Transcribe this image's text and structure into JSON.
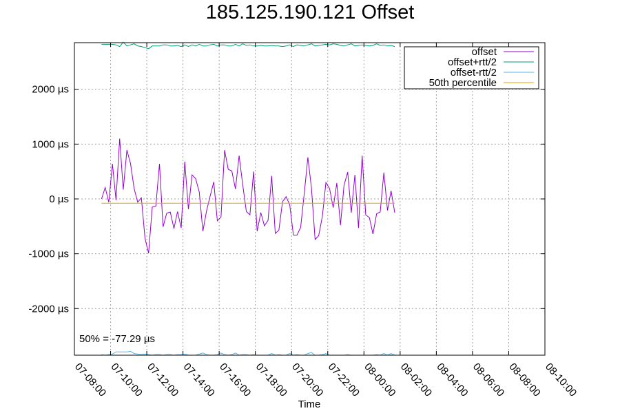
{
  "chart_data": {
    "type": "line",
    "title": "185.125.190.121 Offset",
    "xlabel": "Time",
    "ylabel": "",
    "grid": true,
    "legend_position": "top-right",
    "annotation": "50% = -77.29 µs",
    "x_ticks": [
      "07-08:00",
      "07-10:00",
      "07-12:00",
      "07-14:00",
      "07-16:00",
      "07-18:00",
      "07-20:00",
      "07-22:00",
      "08-00:00",
      "08-02:00",
      "08-04:00",
      "08-06:00",
      "08-08:00",
      "08-10:00"
    ],
    "y_ticks": [
      "-2000 µs",
      "-1000 µs",
      "0 µs",
      "1000 µs",
      "2000 µs"
    ],
    "y_tick_values": [
      -2000,
      -1000,
      0,
      1000,
      2000
    ],
    "xlim_hours": [
      0,
      26
    ],
    "ylim": [
      -2850,
      2850
    ],
    "x_start_hour": 1.5,
    "x_step_hours": 0.2,
    "series": [
      {
        "name": "offset",
        "color": "#9400d3",
        "values": [
          0,
          210,
          -60,
          640,
          -20,
          1100,
          170,
          890,
          650,
          190,
          -60,
          20,
          -720,
          -990,
          -150,
          -130,
          640,
          -510,
          -260,
          -240,
          -540,
          -230,
          -530,
          680,
          -190,
          440,
          370,
          120,
          -590,
          -220,
          50,
          310,
          -400,
          -330,
          890,
          540,
          510,
          180,
          790,
          260,
          -230,
          -290,
          500,
          -590,
          -250,
          -490,
          -390,
          420,
          -630,
          -570,
          -50,
          40,
          -110,
          -660,
          -660,
          -520,
          90,
          760,
          200,
          -740,
          -670,
          -320,
          300,
          190,
          -160,
          290,
          -480,
          250,
          490,
          -250,
          440,
          -530,
          790,
          -290,
          -340,
          -640,
          -270,
          -240,
          480,
          -210,
          150,
          -250
        ]
      },
      {
        "name": "offset+rtt/2",
        "color": "#009e73",
        "values": [
          2820,
          2820,
          2820,
          2820,
          2810,
          2780,
          2860,
          2790,
          2810,
          2830,
          2790,
          2780,
          2760,
          2740,
          2790,
          2790,
          2790,
          2810,
          2810,
          2790,
          2790,
          2800,
          2780,
          2810,
          2780,
          2810,
          2790,
          2820,
          2790,
          2790,
          2810,
          2820,
          2790,
          2810,
          2810,
          2790,
          2790,
          2820,
          2790,
          2830,
          2800,
          2810,
          2790,
          2790,
          2800,
          2790,
          2790,
          2800,
          2790,
          2790,
          2780,
          2790,
          2810,
          2780,
          2810,
          2800,
          2790,
          2810,
          2830,
          2790,
          2800,
          2810,
          2820,
          2810,
          2830,
          2820,
          2800,
          2790,
          2810,
          2830,
          2790,
          2800,
          2810,
          2800,
          2790,
          2800,
          2830,
          2800,
          2810,
          2790,
          2800,
          2780
        ]
      },
      {
        "name": "offset-rtt/2",
        "color": "#56b4e9",
        "values": [
          -2840,
          -2850,
          -2840,
          -2830,
          -2790,
          -2790,
          -2790,
          -2790,
          -2780,
          -2820,
          -2830,
          -2840,
          -2830,
          -2840,
          -2850,
          -2840,
          -2840,
          -2850,
          -2840,
          -2840,
          -2850,
          -2840,
          -2840,
          -2830,
          -2850,
          -2850,
          -2850,
          -2830,
          -2810,
          -2840,
          -2850,
          -2850,
          -2840,
          -2810,
          -2840,
          -2850,
          -2840,
          -2810,
          -2850,
          -2840,
          -2840,
          -2850,
          -2840,
          -2850,
          -2850,
          -2850,
          -2850,
          -2820,
          -2850,
          -2840,
          -2850,
          -2850,
          -2820,
          -2850,
          -2840,
          -2850,
          -2850,
          -2820,
          -2800,
          -2850,
          -2850,
          -2840,
          -2820,
          -2850,
          -2850,
          -2850,
          -2850,
          -2850,
          -2840,
          -2850,
          -2850,
          -2850,
          -2850,
          -2850,
          -2850,
          -2850,
          -2840,
          -2850,
          -2820,
          -2850,
          -2820,
          -2850
        ]
      },
      {
        "name": "50th percentile",
        "color": "#e6a000",
        "values": [
          -77.29,
          -77.29
        ]
      }
    ]
  }
}
